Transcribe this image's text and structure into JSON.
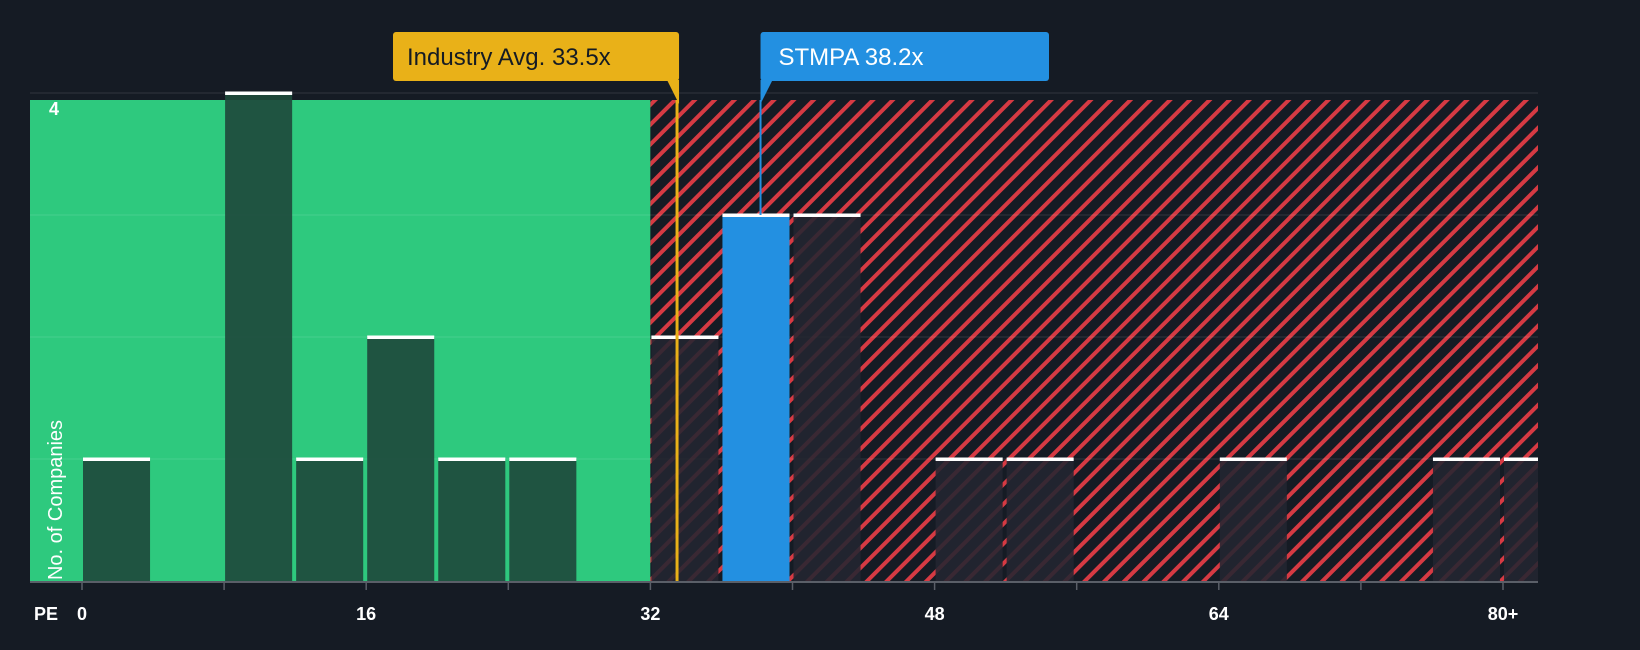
{
  "colors": {
    "background": "#151b24",
    "fair_zone": "#2ec97e",
    "overvalued_zone": "#d63a43",
    "bar_fair": "#1e4a3c",
    "bar_over": "#232631",
    "bar_cap": "#ffffff",
    "industry": "#e9b118",
    "company": "#2390e1"
  },
  "chart_data": {
    "type": "bar",
    "title": "",
    "xlabel": "PE",
    "ylabel": "No. of Companies",
    "xlim": [
      -5.5,
      82
    ],
    "ylim": [
      0,
      4.15
    ],
    "x_ticks": [
      0,
      16,
      32,
      48,
      64,
      80
    ],
    "x_tick_labels": [
      "0",
      "16",
      "32",
      "48",
      "64",
      "80+"
    ],
    "y_ticks": [
      1,
      2,
      3,
      4
    ],
    "y_tick_labels": [
      "",
      "",
      "",
      "4"
    ],
    "bin_width": 4,
    "fair_value_boundary": 32,
    "bins": [
      {
        "start": 0,
        "count": 1
      },
      {
        "start": 8,
        "count": 4
      },
      {
        "start": 12,
        "count": 1
      },
      {
        "start": 16,
        "count": 2
      },
      {
        "start": 20,
        "count": 1
      },
      {
        "start": 24,
        "count": 1
      },
      {
        "start": 32,
        "count": 2
      },
      {
        "start": 36,
        "count": 3,
        "highlight": true
      },
      {
        "start": 40,
        "count": 3
      },
      {
        "start": 48,
        "count": 1
      },
      {
        "start": 52,
        "count": 1
      },
      {
        "start": 64,
        "count": 1
      },
      {
        "start": 76,
        "count": 1
      },
      {
        "start": 80,
        "count": 1
      }
    ],
    "industry_avg": {
      "value": 33.5,
      "label": "Industry Avg. 33.5x"
    },
    "company": {
      "ticker": "STMPA",
      "value": 38.2,
      "label": "STMPA 38.2x"
    }
  }
}
